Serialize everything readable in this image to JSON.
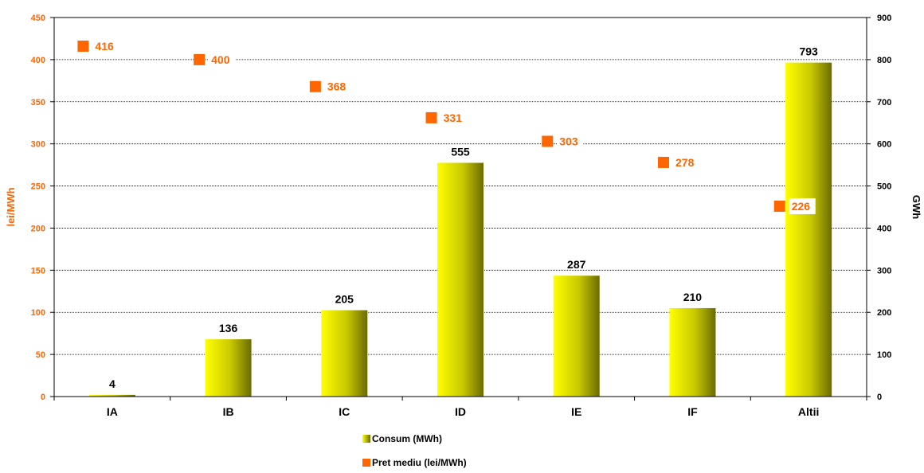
{
  "chart_data": {
    "type": "bar",
    "categories": [
      "IA",
      "IB",
      "IC",
      "ID",
      "IE",
      "IF",
      "Altii"
    ],
    "series": [
      {
        "name": "Consum (MWh)",
        "axis": "right",
        "type": "bar",
        "values": [
          4,
          136,
          205,
          555,
          287,
          210,
          793
        ],
        "labels": [
          "4",
          "136",
          "205",
          "555",
          "287",
          "210",
          "793"
        ],
        "color": "#d9d900"
      },
      {
        "name": "Pret mediu (lei/MWh)",
        "axis": "left",
        "type": "scatter",
        "values": [
          416,
          400,
          368,
          331,
          303,
          278,
          226
        ],
        "labels": [
          "416",
          "400",
          "368",
          "331",
          "303",
          "278",
          "226"
        ],
        "color": "#ff6600"
      }
    ],
    "left_axis": {
      "label": "lei/MWh",
      "ylim": [
        0,
        450
      ],
      "ticks": [
        "0",
        "50",
        "100",
        "150",
        "200",
        "250",
        "300",
        "350",
        "400",
        "450"
      ],
      "color": "#ff6600"
    },
    "right_axis": {
      "label": "GWh",
      "ylim": [
        0,
        900
      ],
      "ticks": [
        "0",
        "100",
        "200",
        "300",
        "400",
        "500",
        "600",
        "700",
        "800",
        "900"
      ],
      "color": "#000000"
    },
    "grid": true,
    "legend_position": "bottom"
  }
}
